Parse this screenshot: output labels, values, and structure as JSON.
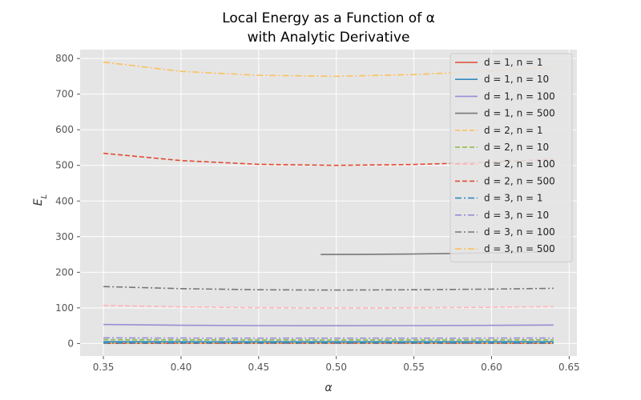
{
  "chart_data": {
    "type": "line",
    "title_line1": "Local Energy as a Function of α",
    "title_line2": "with Analytic Derivative",
    "xlabel": "α",
    "ylabel_base": "E",
    "ylabel_sub": "L",
    "xlim": [
      0.335,
      0.655
    ],
    "ylim": [
      -35,
      825
    ],
    "xticks": [
      0.35,
      0.4,
      0.45,
      0.5,
      0.55,
      0.6,
      0.65
    ],
    "xtick_labels": [
      "0.35",
      "0.40",
      "0.45",
      "0.50",
      "0.55",
      "0.60",
      "0.65"
    ],
    "yticks": [
      0,
      100,
      200,
      300,
      400,
      500,
      600,
      700,
      800
    ],
    "ytick_labels": [
      "0",
      "100",
      "200",
      "300",
      "400",
      "500",
      "600",
      "700",
      "800"
    ],
    "grid": true,
    "legend_position": "top-right",
    "colors": {
      "background": "#E5E5E5",
      "grid": "#FFFFFF",
      "red": "#E24A33",
      "blue": "#348ABD",
      "purple": "#988ED5",
      "gray": "#777777",
      "yellow": "#FBC15E",
      "green": "#8EBA42",
      "pink": "#FFB5B8"
    },
    "series": [
      {
        "name": "d = 1, n = 1",
        "style": "solid",
        "color": "#E24A33",
        "x": [
          0.35,
          0.4,
          0.45,
          0.5,
          0.55,
          0.6,
          0.64
        ],
        "y": [
          0.53,
          0.51,
          0.5,
          0.5,
          0.5,
          0.51,
          0.52
        ]
      },
      {
        "name": "d = 1, n = 10",
        "style": "solid",
        "color": "#348ABD",
        "x": [
          0.35,
          0.4,
          0.45,
          0.5,
          0.55,
          0.6,
          0.64
        ],
        "y": [
          5.3,
          5.1,
          5.0,
          5.0,
          5.0,
          5.1,
          5.2
        ]
      },
      {
        "name": "d = 1, n = 100",
        "style": "solid",
        "color": "#988ED5",
        "x": [
          0.35,
          0.4,
          0.45,
          0.5,
          0.55,
          0.6,
          0.64
        ],
        "y": [
          53.5,
          51.3,
          50.3,
          50.0,
          50.3,
          51.0,
          51.8
        ]
      },
      {
        "name": "d = 1, n = 500",
        "style": "solid",
        "color": "#777777",
        "x": [
          0.49,
          0.52,
          0.55,
          0.58,
          0.61,
          0.64
        ],
        "y": [
          250.0,
          250.4,
          251.4,
          253.0,
          255.2,
          257.5
        ]
      },
      {
        "name": "d = 2, n = 1",
        "style": "dashed",
        "color": "#FBC15E",
        "x": [
          0.35,
          0.4,
          0.45,
          0.5,
          0.55,
          0.6,
          0.64
        ],
        "y": [
          1.07,
          1.03,
          1.01,
          1.0,
          1.01,
          1.02,
          1.04
        ]
      },
      {
        "name": "d = 2, n = 10",
        "style": "dashed",
        "color": "#8EBA42",
        "x": [
          0.35,
          0.4,
          0.45,
          0.5,
          0.55,
          0.6,
          0.64
        ],
        "y": [
          10.7,
          10.3,
          10.1,
          10.0,
          10.1,
          10.2,
          10.4
        ]
      },
      {
        "name": "d = 2, n = 100",
        "style": "dashed",
        "color": "#FFB5B8",
        "x": [
          0.35,
          0.4,
          0.45,
          0.5,
          0.55,
          0.6,
          0.64
        ],
        "y": [
          107.0,
          102.7,
          100.6,
          100.0,
          100.5,
          101.8,
          103.5
        ]
      },
      {
        "name": "d = 2, n = 500",
        "style": "dashed",
        "color": "#E24A33",
        "x": [
          0.35,
          0.4,
          0.45,
          0.5,
          0.55,
          0.6,
          0.64
        ],
        "y": [
          534.0,
          513.5,
          503.0,
          500.0,
          502.5,
          509.0,
          517.5
        ]
      },
      {
        "name": "d = 3, n = 1",
        "style": "dashdot",
        "color": "#348ABD",
        "x": [
          0.35,
          0.4,
          0.45,
          0.5,
          0.55,
          0.6,
          0.64
        ],
        "y": [
          1.6,
          1.54,
          1.51,
          1.5,
          1.51,
          1.53,
          1.56
        ]
      },
      {
        "name": "d = 3, n = 10",
        "style": "dashdot",
        "color": "#988ED5",
        "x": [
          0.35,
          0.4,
          0.45,
          0.5,
          0.55,
          0.6,
          0.64
        ],
        "y": [
          16.0,
          15.4,
          15.1,
          15.0,
          15.1,
          15.3,
          15.6
        ]
      },
      {
        "name": "d = 3, n = 100",
        "style": "dashdot",
        "color": "#777777",
        "x": [
          0.35,
          0.4,
          0.45,
          0.5,
          0.55,
          0.6,
          0.64
        ],
        "y": [
          160.0,
          154.0,
          151.0,
          150.0,
          151.0,
          152.8,
          155.0
        ]
      },
      {
        "name": "d = 3, n = 500",
        "style": "dashdot",
        "color": "#FBC15E",
        "x": [
          0.35,
          0.4,
          0.45,
          0.5,
          0.55,
          0.6,
          0.64
        ],
        "y": [
          790.0,
          764.0,
          753.0,
          750.0,
          755.0,
          765.0,
          775.0
        ]
      }
    ]
  }
}
